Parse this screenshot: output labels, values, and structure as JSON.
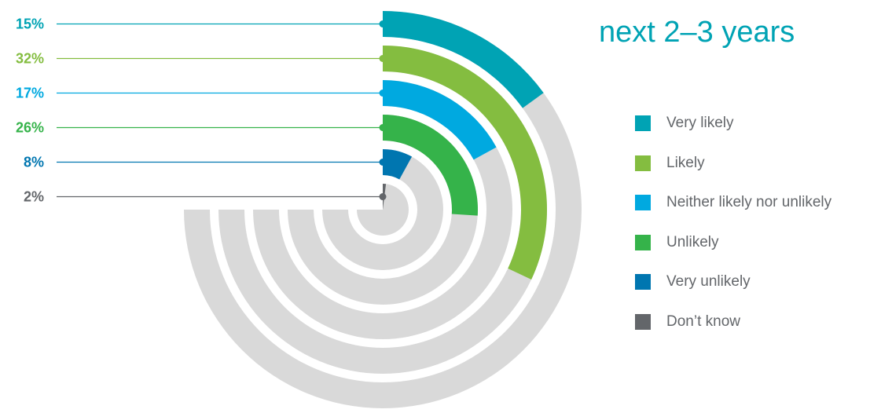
{
  "title_lines": [
    "",
    "next 2–3 years"
  ],
  "colors": {
    "track": "#d9d9d9",
    "leader_default": "#8a8c8e"
  },
  "chart_data": {
    "type": "radial-bar",
    "unit": "%",
    "max": 100,
    "series": [
      {
        "name": "Very likely",
        "value": 15,
        "label": "15%",
        "color": "#00a3b4"
      },
      {
        "name": "Likely",
        "value": 32,
        "label": "32%",
        "color": "#84bd40"
      },
      {
        "name": "Neither likely nor unlikely",
        "value": 17,
        "label": "17%",
        "color": "#00a9e0"
      },
      {
        "name": "Unlikely",
        "value": 26,
        "label": "26%",
        "color": "#35b34a"
      },
      {
        "name": "Very unlikely",
        "value": 8,
        "label": "8%",
        "color": "#0076b0"
      },
      {
        "name": "Don’t know",
        "value": 2,
        "label": "2%",
        "color": "#63666a"
      }
    ]
  }
}
